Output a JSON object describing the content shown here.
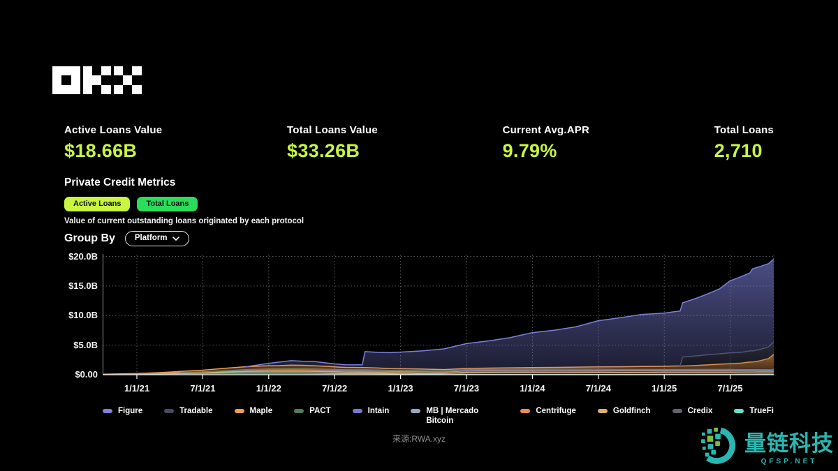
{
  "header": {
    "logo_text": "OKX"
  },
  "metrics": [
    {
      "label": "Active Loans Value",
      "value": "$18.66B"
    },
    {
      "label": "Total Loans Value",
      "value": "$33.26B"
    },
    {
      "label": "Current Avg.APR",
      "value": "9.79%"
    },
    {
      "label": "Total Loans",
      "value": "2,710"
    }
  ],
  "section": {
    "title": "Private Credit Metrics",
    "tabs": [
      {
        "label": "Active Loans",
        "active": true
      },
      {
        "label": "Total Loans",
        "active": false
      }
    ],
    "description": "Value of current outstanding loans originated by each protocol",
    "group_by_label": "Group By",
    "group_by_value": "Platform"
  },
  "colors": {
    "background": "#000000",
    "accent_lime": "#c9f63f",
    "accent_green": "#2cdd5c",
    "text": "#ffffff",
    "grid": "#5c5c5c",
    "axis": "#dedede",
    "muted": "#8f8f8f"
  },
  "chart_data": {
    "type": "area",
    "stacked": true,
    "title": "",
    "xlabel": "",
    "ylabel": "",
    "ylim": [
      0,
      20
    ],
    "x_range": [
      2020.74,
      2025.83
    ],
    "grid": "dotted",
    "legend_position": "bottom",
    "y_ticks": [
      {
        "v": 0,
        "label": "$0.00"
      },
      {
        "v": 5,
        "label": "$5.0B"
      },
      {
        "v": 10,
        "label": "$10.0B"
      },
      {
        "v": 15,
        "label": "$15.0B"
      },
      {
        "v": 20,
        "label": "$20.0B"
      }
    ],
    "x_ticks": [
      {
        "x": 2021.0,
        "label": "1/1/21"
      },
      {
        "x": 2021.5,
        "label": "7/1/21"
      },
      {
        "x": 2022.0,
        "label": "1/1/22"
      },
      {
        "x": 2022.5,
        "label": "7/1/22"
      },
      {
        "x": 2023.0,
        "label": "1/1/23"
      },
      {
        "x": 2023.5,
        "label": "7/1/23"
      },
      {
        "x": 2024.0,
        "label": "1/1/24"
      },
      {
        "x": 2024.5,
        "label": "7/1/24"
      },
      {
        "x": 2025.0,
        "label": "1/1/25"
      },
      {
        "x": 2025.5,
        "label": "7/1/25"
      }
    ],
    "x_years": [
      2020.75,
      2021.0,
      2021.17,
      2021.33,
      2021.5,
      2021.67,
      2021.83,
      2022.0,
      2022.08,
      2022.17,
      2022.25,
      2022.33,
      2022.42,
      2022.5,
      2022.58,
      2022.67,
      2022.71,
      2022.73,
      2022.83,
      2022.92,
      2023.0,
      2023.17,
      2023.33,
      2023.5,
      2023.67,
      2023.83,
      2024.0,
      2024.17,
      2024.33,
      2024.5,
      2024.67,
      2024.83,
      2025.0,
      2025.08,
      2025.12,
      2025.14,
      2025.25,
      2025.33,
      2025.42,
      2025.5,
      2025.58,
      2025.65,
      2025.67,
      2025.72,
      2025.79,
      2025.83
    ],
    "units": "$B",
    "stack_order": "reverse-legend",
    "series": [
      {
        "name": "Figure",
        "color": "#7d81dd",
        "values": [
          0,
          0,
          0,
          0,
          0,
          0,
          0,
          0.4,
          0.6,
          0.75,
          0.7,
          0.75,
          0.6,
          0.5,
          0.45,
          0.45,
          0.45,
          2.7,
          2.65,
          2.7,
          2.8,
          3.1,
          3.5,
          4.2,
          4.6,
          5.1,
          5.9,
          6.3,
          6.8,
          7.8,
          8.3,
          8.8,
          9.0,
          9.2,
          9.3,
          9.2,
          9.8,
          10.3,
          11.0,
          12.2,
          12.8,
          13.2,
          13.9,
          14.0,
          14.1,
          14.0
        ]
      },
      {
        "name": "Tradable",
        "color": "#474a63",
        "values": [
          0,
          0,
          0,
          0,
          0,
          0,
          0,
          0,
          0,
          0,
          0,
          0,
          0,
          0,
          0,
          0,
          0,
          0,
          0,
          0,
          0,
          0,
          0,
          0,
          0,
          0,
          0,
          0,
          0,
          0,
          0,
          0,
          0,
          0,
          0,
          1.5,
          1.6,
          1.7,
          1.75,
          1.8,
          1.8,
          1.85,
          1.85,
          1.9,
          1.95,
          2.1
        ]
      },
      {
        "name": "Maple",
        "color": "#ef9c56",
        "values": [
          0.02,
          0.05,
          0.1,
          0.2,
          0.3,
          0.4,
          0.5,
          0.55,
          0.55,
          0.6,
          0.58,
          0.55,
          0.5,
          0.45,
          0.4,
          0.38,
          0.38,
          0.38,
          0.35,
          0.3,
          0.28,
          0.25,
          0.22,
          0.2,
          0.22,
          0.25,
          0.28,
          0.3,
          0.35,
          0.4,
          0.45,
          0.5,
          0.55,
          0.6,
          0.6,
          0.6,
          0.7,
          0.8,
          0.9,
          1.0,
          1.1,
          1.3,
          1.3,
          1.5,
          1.9,
          2.6
        ]
      },
      {
        "name": "PACT",
        "color": "#55795c",
        "values": [
          0,
          0,
          0,
          0,
          0.02,
          0.05,
          0.08,
          0.1,
          0.1,
          0.1,
          0.1,
          0.1,
          0.1,
          0.1,
          0.1,
          0.1,
          0.1,
          0.1,
          0.1,
          0.1,
          0.1,
          0.1,
          0.1,
          0.1,
          0.1,
          0.1,
          0.1,
          0.1,
          0.1,
          0.1,
          0.1,
          0.1,
          0.1,
          0.1,
          0.1,
          0.1,
          0.1,
          0.1,
          0.1,
          0.1,
          0.1,
          0.1,
          0.1,
          0.1,
          0.1,
          0.1
        ]
      },
      {
        "name": "Intain",
        "color": "#7678d1",
        "values": [
          0,
          0,
          0,
          0,
          0,
          0,
          0.03,
          0.05,
          0.06,
          0.06,
          0.07,
          0.07,
          0.08,
          0.08,
          0.08,
          0.08,
          0.08,
          0.08,
          0.08,
          0.08,
          0.08,
          0.08,
          0.07,
          0.07,
          0.07,
          0.06,
          0.06,
          0.06,
          0.06,
          0.05,
          0.05,
          0.05,
          0.05,
          0.05,
          0.05,
          0.05,
          0.05,
          0.05,
          0.05,
          0.05,
          0.05,
          0.05,
          0.05,
          0.05,
          0.05,
          0.05
        ]
      },
      {
        "name": "MB | Mercado Bitcoin",
        "color": "#8fa9c2",
        "values": [
          0,
          0,
          0,
          0,
          0,
          0,
          0,
          0,
          0,
          0,
          0,
          0,
          0,
          0,
          0,
          0,
          0,
          0,
          0,
          0,
          0.02,
          0.03,
          0.03,
          0.03,
          0.04,
          0.04,
          0.05,
          0.05,
          0.05,
          0.06,
          0.06,
          0.06,
          0.08,
          0.08,
          0.08,
          0.08,
          0.09,
          0.09,
          0.09,
          0.09,
          0.1,
          0.1,
          0.1,
          0.1,
          0.1,
          0.1
        ]
      },
      {
        "name": "Centrifuge",
        "color": "#ed8b4f",
        "values": [
          0.02,
          0.03,
          0.05,
          0.08,
          0.1,
          0.15,
          0.2,
          0.22,
          0.22,
          0.24,
          0.24,
          0.23,
          0.22,
          0.2,
          0.2,
          0.2,
          0.2,
          0.2,
          0.2,
          0.2,
          0.22,
          0.24,
          0.25,
          0.25,
          0.26,
          0.27,
          0.28,
          0.3,
          0.3,
          0.3,
          0.3,
          0.3,
          0.3,
          0.3,
          0.3,
          0.3,
          0.3,
          0.3,
          0.3,
          0.3,
          0.3,
          0.3,
          0.3,
          0.3,
          0.3,
          0.3
        ]
      },
      {
        "name": "Goldfinch",
        "color": "#d8b26c",
        "values": [
          0,
          0.02,
          0.05,
          0.08,
          0.1,
          0.18,
          0.25,
          0.3,
          0.3,
          0.32,
          0.3,
          0.3,
          0.28,
          0.28,
          0.26,
          0.25,
          0.25,
          0.25,
          0.22,
          0.2,
          0.2,
          0.15,
          0.12,
          0.1,
          0.1,
          0.1,
          0.1,
          0.08,
          0.08,
          0.08,
          0.06,
          0.06,
          0.05,
          0.05,
          0.05,
          0.05,
          0.05,
          0.05,
          0.05,
          0.05,
          0.05,
          0.05,
          0.05,
          0.05,
          0.05,
          0.05
        ]
      },
      {
        "name": "Credix",
        "color": "#63646a",
        "values": [
          0,
          0,
          0,
          0,
          0,
          0,
          0,
          0,
          0,
          0,
          0,
          0,
          0,
          0,
          0,
          0,
          0,
          0,
          0,
          0,
          0,
          0,
          0,
          0.25,
          0.28,
          0.3,
          0.3,
          0.3,
          0.3,
          0.3,
          0.28,
          0.28,
          0.25,
          0.25,
          0.25,
          0.25,
          0.25,
          0.25,
          0.25,
          0.25,
          0.22,
          0.22,
          0.22,
          0.2,
          0.2,
          0.2
        ]
      },
      {
        "name": "TrueFi",
        "color": "#5fe3cf",
        "values": [
          0.05,
          0.1,
          0.15,
          0.2,
          0.25,
          0.3,
          0.3,
          0.3,
          0.3,
          0.3,
          0.3,
          0.28,
          0.25,
          0.22,
          0.2,
          0.2,
          0.2,
          0.2,
          0.18,
          0.15,
          0.12,
          0.1,
          0.08,
          0.06,
          0.05,
          0.05,
          0.05,
          0.05,
          0.05,
          0.04,
          0.04,
          0.04,
          0.04,
          0.04,
          0.04,
          0.04,
          0.04,
          0.04,
          0.04,
          0.04,
          0.04,
          0.04,
          0.04,
          0.04,
          0.04,
          0.04
        ]
      }
    ]
  },
  "footer": {
    "source": "来源:RWA.xyz"
  },
  "watermark": {
    "text": "量链科技",
    "subtext": "QFSP.NET",
    "color": "#2ab7b1",
    "accent": "#76c043"
  }
}
